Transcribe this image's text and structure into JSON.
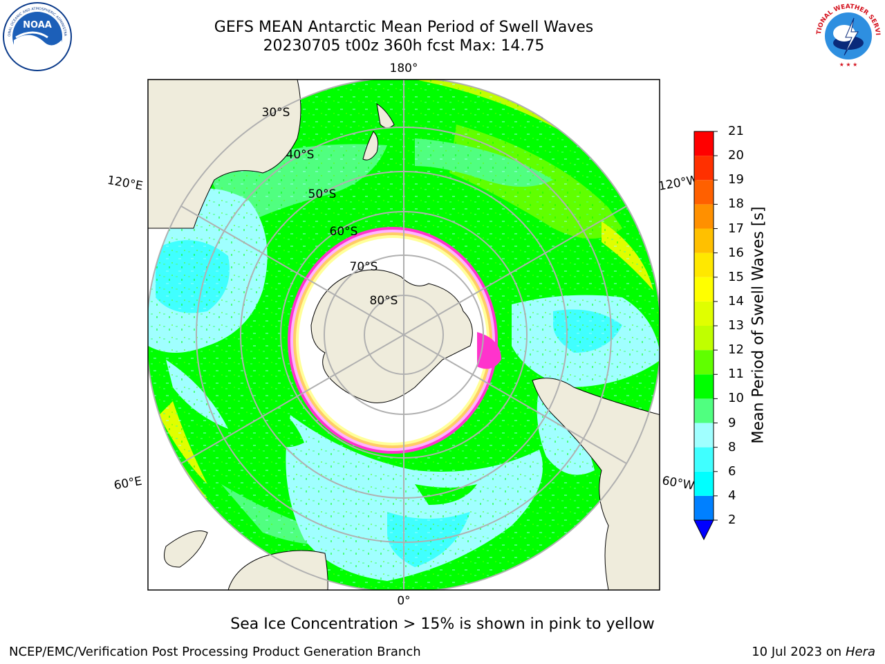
{
  "header": {
    "title_line1": "GEFS MEAN Antarctic Mean Period of Swell Waves",
    "title_line2": "20230705 t00z 360h fcst   Max: 14.75"
  },
  "logos": {
    "left": "NOAA",
    "right": "NATIONAL WEATHER SERVICE"
  },
  "map": {
    "projection": "south-polar-stereographic",
    "longitude_labels": [
      "180°",
      "120°E",
      "120°W",
      "60°E",
      "60°W",
      "0°"
    ],
    "latitude_labels": [
      "30°S",
      "40°S",
      "50°S",
      "60°S",
      "70°S",
      "80°S"
    ],
    "colors": {
      "land": "#efecdc",
      "sea_ice": "#ffffff",
      "ice_edge": [
        "#ff33cc",
        "#ffb3ff",
        "#ffcc66",
        "#ffff99"
      ],
      "grid": "#b0b0b0"
    }
  },
  "colorbar": {
    "title": "Mean Period of Swell Waves [s]",
    "ticks": [
      "2",
      "4",
      "6",
      "8",
      "9",
      "10",
      "11",
      "12",
      "13",
      "14",
      "15",
      "16",
      "17",
      "18",
      "19",
      "20",
      "21"
    ],
    "colors": [
      "#0000ff",
      "#0080ff",
      "#00ffff",
      "#40ffff",
      "#a0ffff",
      "#50ff80",
      "#00ff00",
      "#60ff00",
      "#c0ff00",
      "#e0ff00",
      "#ffff00",
      "#ffe800",
      "#ffc000",
      "#ff9000",
      "#ff6000",
      "#ff3000",
      "#ff0000"
    ]
  },
  "caption": "Sea Ice Concentration > 15% is shown in pink to yellow",
  "footer": {
    "left": "NCEP/EMC/Verification Post Processing Product Generation Branch",
    "date": "10 Jul 2023 on ",
    "host": "Hera"
  }
}
